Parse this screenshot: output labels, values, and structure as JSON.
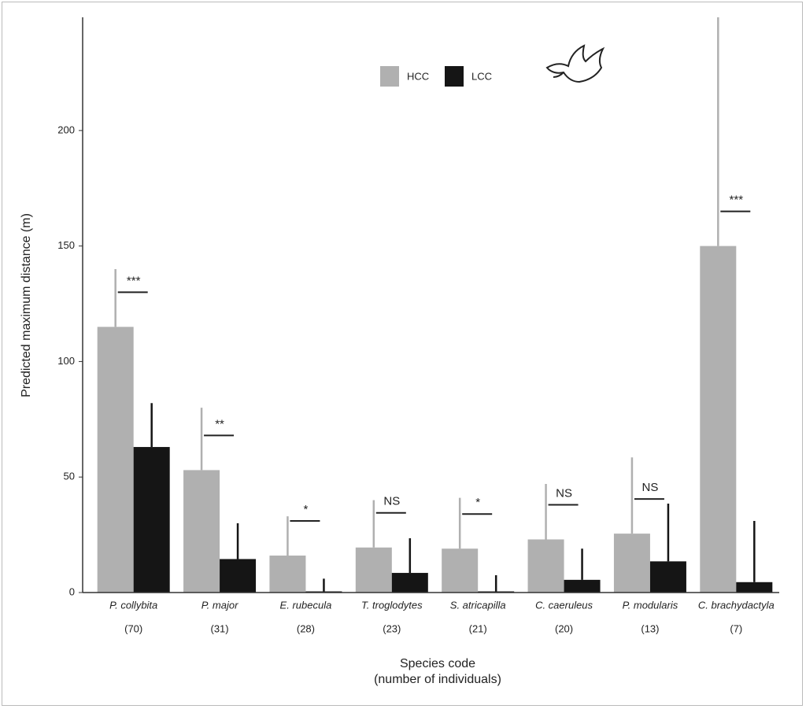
{
  "chart_data": {
    "type": "bar",
    "ylabel": "Predicted maximum distance (m)",
    "xlabel": [
      "Species code",
      "(number of individuals)"
    ],
    "categories": [
      "P. collybita",
      "P. major",
      "E. rubecula",
      "T. troglodytes",
      "S. atricapilla",
      "C. caeruleus",
      "P. modularis",
      "C. brachydactyla"
    ],
    "counts": [
      "(70)",
      "(31)",
      "(28)",
      "(23)",
      "(21)",
      "(20)",
      "(13)",
      "(7)"
    ],
    "series": [
      {
        "name": "HCC",
        "color": "#b0b0b0",
        "values": [
          115,
          53,
          16,
          19.5,
          19,
          23,
          25.5,
          150
        ],
        "errors": [
          25,
          27,
          17,
          20.5,
          22,
          24,
          33,
          100
        ]
      },
      {
        "name": "LCC",
        "color": "#151515",
        "values": [
          63,
          14.5,
          0.5,
          8.5,
          0.5,
          5.5,
          13.5,
          4.5
        ],
        "errors": [
          19,
          15.5,
          5.5,
          15,
          7,
          13.5,
          25,
          26.5
        ]
      }
    ],
    "significance": [
      "***",
      "**",
      "*",
      "NS",
      "*",
      "NS",
      "NS",
      "***"
    ],
    "ylim": [
      0,
      249
    ],
    "yticks": [
      0,
      50,
      100,
      150,
      200
    ],
    "legend": "top"
  }
}
